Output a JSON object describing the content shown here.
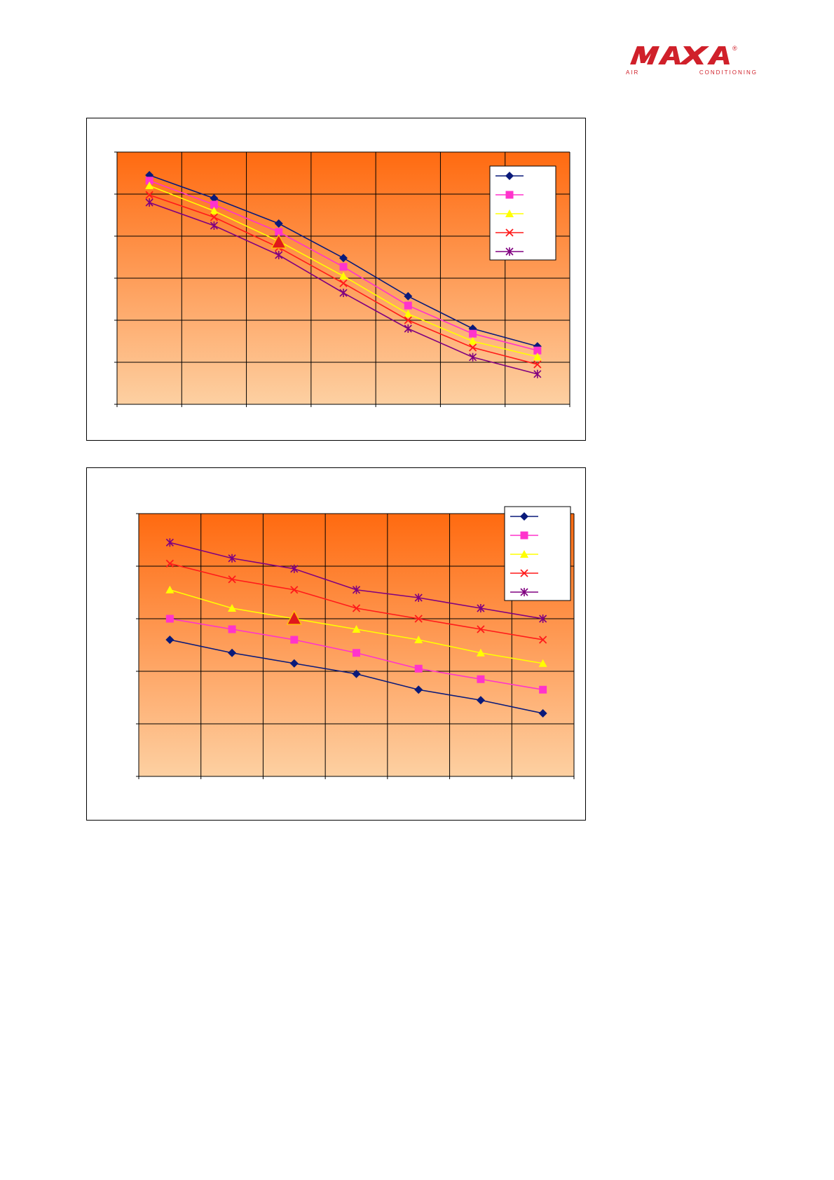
{
  "logo": {
    "name": "MAXA",
    "tagline": "AIR CONDITIONING",
    "registered_mark": "®",
    "color": "#d0202a"
  },
  "colors": {
    "plot_top": "#ff6a10",
    "plot_bottom": "#fdd0a2",
    "grid": "#000000"
  },
  "chart_data": [
    {
      "type": "line",
      "title": "",
      "xlabel": "",
      "ylabel": "",
      "x_categories": 7,
      "ylim": [
        0,
        6
      ],
      "grid": true,
      "legend_position": "top-right",
      "series": [
        {
          "values": [
            5.45,
            4.9,
            4.3,
            3.48,
            2.57,
            1.8,
            1.38
          ],
          "color": "#0a1a7a",
          "marker": "diamond"
        },
        {
          "values": [
            5.32,
            4.75,
            4.1,
            3.27,
            2.35,
            1.68,
            1.28
          ],
          "color": "#ff33cc",
          "marker": "square"
        },
        {
          "values": [
            5.2,
            4.6,
            3.88,
            3.05,
            2.15,
            1.5,
            1.13
          ],
          "color": "#ffff00",
          "marker": "triangle"
        },
        {
          "values": [
            4.98,
            4.45,
            3.73,
            2.88,
            2.0,
            1.35,
            0.95
          ],
          "color": "#ff1a1a",
          "marker": "x"
        },
        {
          "values": [
            4.8,
            4.25,
            3.55,
            2.65,
            1.8,
            1.12,
            0.72
          ],
          "color": "#800080",
          "marker": "star"
        }
      ],
      "operating_point": {
        "x_index": 2,
        "value": 3.85,
        "color": "#e0181c"
      }
    },
    {
      "type": "line",
      "title": "",
      "xlabel": "",
      "ylabel": "",
      "x_categories": 7,
      "ylim": [
        0,
        5
      ],
      "grid": true,
      "legend_position": "top-right",
      "series": [
        {
          "values": [
            2.6,
            2.35,
            2.15,
            1.95,
            1.65,
            1.45,
            1.2
          ],
          "color": "#0a1a7a",
          "marker": "diamond"
        },
        {
          "values": [
            3.0,
            2.8,
            2.6,
            2.35,
            2.05,
            1.85,
            1.65
          ],
          "color": "#ff33cc",
          "marker": "square"
        },
        {
          "values": [
            3.55,
            3.2,
            3.0,
            2.8,
            2.6,
            2.35,
            2.15
          ],
          "color": "#ffff00",
          "marker": "triangle"
        },
        {
          "values": [
            4.05,
            3.75,
            3.55,
            3.2,
            3.0,
            2.8,
            2.6
          ],
          "color": "#ff1a1a",
          "marker": "x"
        },
        {
          "values": [
            4.45,
            4.15,
            3.95,
            3.55,
            3.4,
            3.2,
            3.0
          ],
          "color": "#800080",
          "marker": "star"
        }
      ],
      "operating_point": {
        "x_index": 2,
        "value": 3.0,
        "color": "#e0181c"
      }
    }
  ]
}
